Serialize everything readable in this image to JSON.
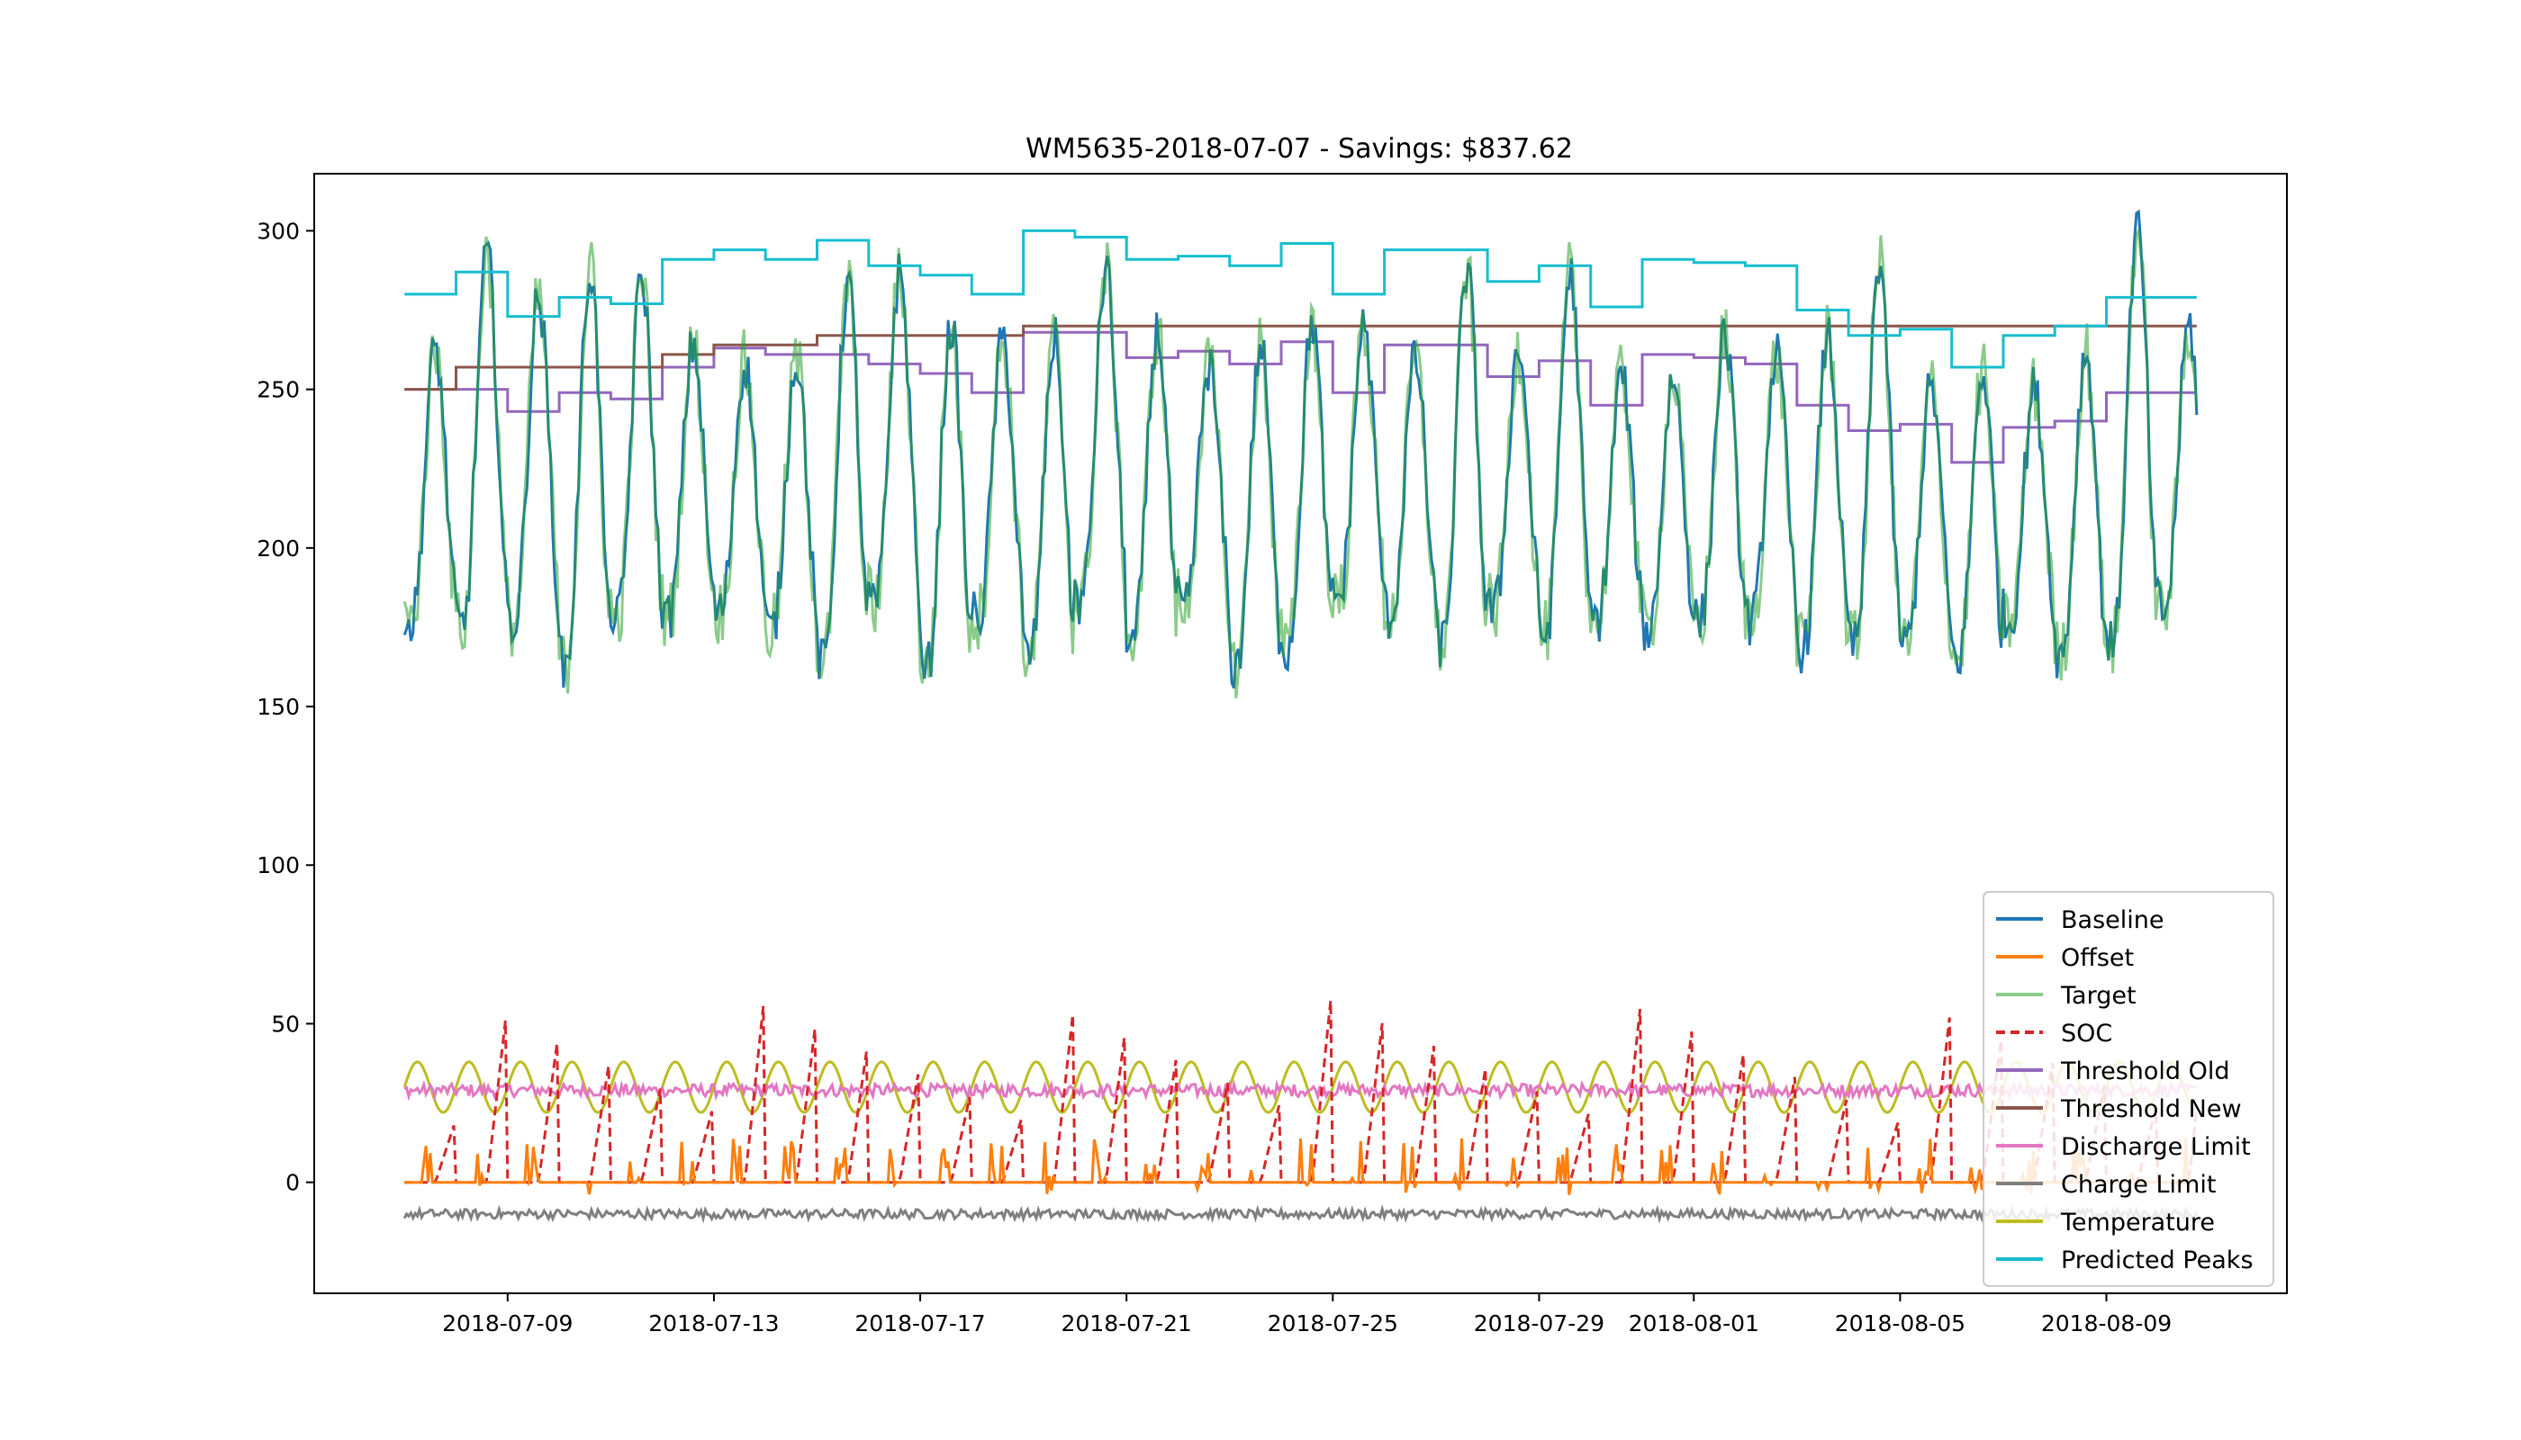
{
  "chart_data": {
    "type": "line",
    "title": "WM5635-2018-07-07 - Savings: $837.62",
    "xlabel": "",
    "ylabel": "",
    "x_range": [
      "2018-07-07 00:00",
      "2018-08-11 00:00"
    ],
    "xlim": [
      "2018-07-05 06:00",
      "2018-08-12 12:00"
    ],
    "ylim": [
      -35,
      318
    ],
    "x_ticks": [
      "2018-07-09",
      "2018-07-13",
      "2018-07-17",
      "2018-07-21",
      "2018-07-25",
      "2018-07-29",
      "2018-08-01",
      "2018-08-05",
      "2018-08-09"
    ],
    "y_ticks": [
      0,
      50,
      100,
      150,
      200,
      250,
      300
    ],
    "grid": false,
    "legend_position": "lower-right",
    "series": [
      {
        "name": "Baseline",
        "color": "#1f77b4",
        "style": "solid",
        "kind": "daily-cycle",
        "daily_min_range": [
          158,
          185
        ],
        "daily_max_range": [
          250,
          301
        ],
        "peak_value": 301
      },
      {
        "name": "Offset",
        "color": "#ff7f0e",
        "style": "solid",
        "kind": "spikes",
        "base": 0,
        "spike_max": 18
      },
      {
        "name": "Target",
        "color": "#2ca02c",
        "style": "solid",
        "kind": "daily-cycle",
        "opacity": 0.55
      },
      {
        "name": "SOC",
        "color": "#d62728",
        "style": "dashed",
        "kind": "ramps",
        "base": 0,
        "peak_range": [
          20,
          65
        ]
      },
      {
        "name": "Threshold Old",
        "color": "#9467bd",
        "style": "solid",
        "kind": "step",
        "steps": [
          [
            "2018-07-07",
            250
          ],
          [
            "2018-07-09",
            243
          ],
          [
            "2018-07-10",
            249
          ],
          [
            "2018-07-11",
            247
          ],
          [
            "2018-07-12",
            257
          ],
          [
            "2018-07-13",
            263
          ],
          [
            "2018-07-14",
            261
          ],
          [
            "2018-07-16",
            258
          ],
          [
            "2018-07-17",
            255
          ],
          [
            "2018-07-18",
            249
          ],
          [
            "2018-07-19",
            268
          ],
          [
            "2018-07-21",
            260
          ],
          [
            "2018-07-22",
            262
          ],
          [
            "2018-07-23",
            258
          ],
          [
            "2018-07-24",
            265
          ],
          [
            "2018-07-25",
            249
          ],
          [
            "2018-07-26",
            264
          ],
          [
            "2018-07-28",
            254
          ],
          [
            "2018-07-29",
            259
          ],
          [
            "2018-07-30",
            245
          ],
          [
            "2018-07-31",
            261
          ],
          [
            "2018-08-01",
            260
          ],
          [
            "2018-08-02",
            258
          ],
          [
            "2018-08-03",
            245
          ],
          [
            "2018-08-04",
            237
          ],
          [
            "2018-08-05",
            239
          ],
          [
            "2018-08-06",
            227
          ],
          [
            "2018-08-07",
            238
          ],
          [
            "2018-08-08",
            240
          ],
          [
            "2018-08-09",
            249
          ]
        ]
      },
      {
        "name": "Threshold New",
        "color": "#8c564b",
        "style": "solid",
        "kind": "step",
        "steps": [
          [
            "2018-07-07",
            250
          ],
          [
            "2018-07-08",
            257
          ],
          [
            "2018-07-12",
            261
          ],
          [
            "2018-07-13",
            264
          ],
          [
            "2018-07-15",
            267
          ],
          [
            "2018-07-19",
            270
          ],
          [
            "2018-08-10",
            270
          ]
        ]
      },
      {
        "name": "Discharge Limit",
        "color": "#e377c2",
        "style": "solid",
        "kind": "noisy",
        "mean": 29,
        "amplitude": 4
      },
      {
        "name": "Charge Limit",
        "color": "#7f7f7f",
        "style": "solid",
        "kind": "noisy",
        "mean": -10,
        "amplitude": 3
      },
      {
        "name": "Temperature",
        "color": "#bcbd22",
        "style": "solid",
        "kind": "sine",
        "mean": 30,
        "amplitude": 8
      },
      {
        "name": "Predicted Peaks",
        "color": "#17becf",
        "style": "solid",
        "kind": "step",
        "steps": [
          [
            "2018-07-07",
            280
          ],
          [
            "2018-07-08",
            287
          ],
          [
            "2018-07-09",
            273
          ],
          [
            "2018-07-10",
            279
          ],
          [
            "2018-07-11",
            277
          ],
          [
            "2018-07-12",
            291
          ],
          [
            "2018-07-13",
            294
          ],
          [
            "2018-07-14",
            291
          ],
          [
            "2018-07-15",
            297
          ],
          [
            "2018-07-16",
            289
          ],
          [
            "2018-07-17",
            286
          ],
          [
            "2018-07-18",
            280
          ],
          [
            "2018-07-19",
            300
          ],
          [
            "2018-07-20",
            298
          ],
          [
            "2018-07-21",
            291
          ],
          [
            "2018-07-22",
            292
          ],
          [
            "2018-07-23",
            289
          ],
          [
            "2018-07-24",
            296
          ],
          [
            "2018-07-25",
            280
          ],
          [
            "2018-07-26",
            294
          ],
          [
            "2018-07-28",
            284
          ],
          [
            "2018-07-29",
            289
          ],
          [
            "2018-07-30",
            276
          ],
          [
            "2018-07-31",
            291
          ],
          [
            "2018-08-01",
            290
          ],
          [
            "2018-08-02",
            289
          ],
          [
            "2018-08-03",
            275
          ],
          [
            "2018-08-04",
            267
          ],
          [
            "2018-08-05",
            269
          ],
          [
            "2018-08-06",
            257
          ],
          [
            "2018-08-07",
            267
          ],
          [
            "2018-08-08",
            270
          ],
          [
            "2018-08-09",
            279
          ]
        ]
      }
    ]
  }
}
